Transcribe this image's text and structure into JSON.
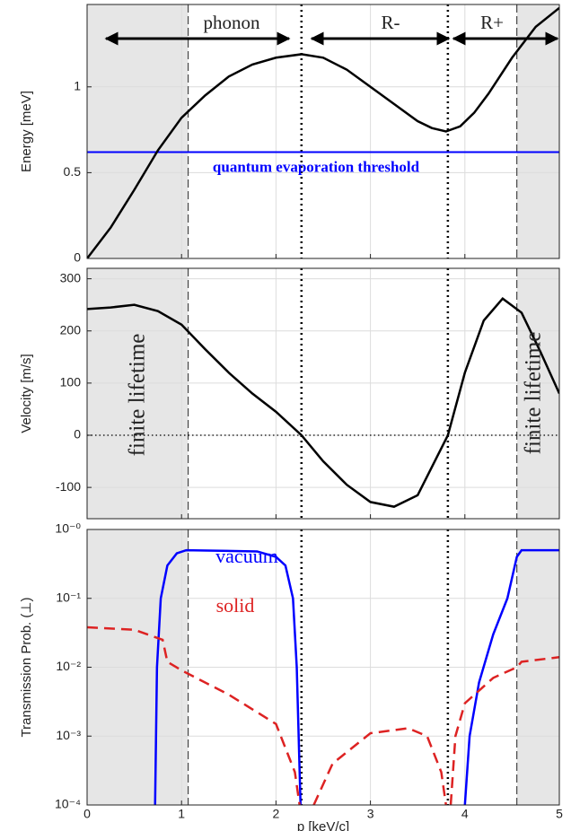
{
  "chart_data": [
    {
      "type": "line",
      "ylabel": "Energy [meV]",
      "xlim": [
        0,
        5
      ],
      "xticks": [
        0,
        1,
        2,
        3,
        4,
        5
      ],
      "ylim": [
        0,
        1.48
      ],
      "yticks": [
        0,
        0.5,
        1
      ],
      "grid": true,
      "dashed_vlines": [
        1.07,
        4.55
      ],
      "dotted_vlines": [
        2.27,
        3.82
      ],
      "hline": {
        "value": 0.62,
        "color": "#0000ff",
        "style": "solid",
        "label": "quantum evaporation threshold"
      },
      "annotations": [
        "phonon",
        "R-",
        "R+"
      ],
      "series": [
        {
          "color": "#000000",
          "x": [
            0,
            0.25,
            0.5,
            0.75,
            1,
            1.25,
            1.5,
            1.75,
            2,
            2.27,
            2.5,
            2.75,
            3,
            3.25,
            3.5,
            3.65,
            3.8,
            3.95,
            4.1,
            4.25,
            4.5,
            4.75,
            5
          ],
          "values": [
            0,
            0.18,
            0.4,
            0.63,
            0.82,
            0.95,
            1.06,
            1.13,
            1.17,
            1.19,
            1.17,
            1.1,
            1.0,
            0.9,
            0.8,
            0.76,
            0.74,
            0.77,
            0.85,
            0.96,
            1.17,
            1.35,
            1.46
          ]
        }
      ]
    },
    {
      "type": "line",
      "ylabel": "Velocity [m/s]",
      "xlim": [
        0,
        5
      ],
      "xticks": [
        0,
        1,
        2,
        3,
        4,
        5
      ],
      "ylim": [
        -160,
        320
      ],
      "yticks": [
        -100,
        0,
        100,
        200,
        300
      ],
      "grid": true,
      "dashed_vlines": [
        1.07,
        4.55
      ],
      "dotted_vlines": [
        2.27,
        3.82
      ],
      "hline": {
        "value": 0,
        "color": "#000000",
        "style": "dotted"
      },
      "annotations": [
        "finite lifetime",
        "finite lifetime"
      ],
      "series": [
        {
          "color": "#000000",
          "x": [
            0,
            0.25,
            0.5,
            0.75,
            1,
            1.25,
            1.5,
            1.75,
            2,
            2.27,
            2.5,
            2.75,
            3,
            3.25,
            3.5,
            3.82,
            4,
            4.2,
            4.4,
            4.6,
            4.8,
            5
          ],
          "values": [
            242,
            245,
            250,
            238,
            212,
            165,
            120,
            80,
            45,
            0,
            -50,
            -95,
            -128,
            -137,
            -115,
            0,
            120,
            220,
            262,
            235,
            160,
            80
          ]
        }
      ]
    },
    {
      "type": "line",
      "ylabel": "Transmission Prob. (⊥)",
      "xlabel": "p [keV/c]",
      "xticklabels": true,
      "xlim": [
        0,
        5
      ],
      "xticks": [
        0,
        1,
        2,
        3,
        4,
        5
      ],
      "ylim": [
        0.0001,
        1
      ],
      "log": true,
      "grid": true,
      "yticks": [
        {
          "value": 0.0001,
          "label": "10⁻⁴"
        },
        {
          "value": 0.001,
          "label": "10⁻³"
        },
        {
          "value": 0.01,
          "label": "10⁻²"
        },
        {
          "value": 0.1,
          "label": "10⁻¹"
        },
        {
          "value": 1,
          "label": "10⁻⁰"
        }
      ],
      "dashed_vlines": [
        1.07,
        4.55
      ],
      "dotted_vlines": [
        2.27,
        3.82
      ],
      "series": [
        {
          "name": "vacuum",
          "color": "#0000ff",
          "style": "solid",
          "x": [
            0.72,
            0.74,
            0.78,
            0.85,
            0.95,
            1.05,
            1.8,
            2.0,
            2.1,
            2.18,
            2.22,
            2.26,
            3.0,
            4.0,
            4.05,
            4.15,
            4.3,
            4.45,
            4.55,
            4.6,
            5
          ],
          "values": [
            0.0001,
            0.01,
            0.1,
            0.3,
            0.45,
            0.5,
            0.48,
            0.4,
            0.3,
            0.1,
            0.01,
            0.0001,
            null,
            0.0001,
            0.001,
            0.006,
            0.03,
            0.1,
            0.4,
            0.5,
            0.5
          ]
        },
        {
          "name": "solid",
          "color": "#dd2222",
          "style": "dashed",
          "x": [
            0,
            0.5,
            0.8,
            0.85,
            1.0,
            1.5,
            2.0,
            2.2,
            2.25,
            2.3,
            2.4,
            2.6,
            3.0,
            3.4,
            3.6,
            3.75,
            3.8,
            3.82,
            3.85,
            3.9,
            4.0,
            4.3,
            4.55,
            4.6,
            5
          ],
          "values": [
            0.038,
            0.035,
            0.025,
            0.012,
            0.009,
            0.004,
            0.0015,
            0.0003,
            0.0001,
            null,
            0.0001,
            0.0004,
            0.0011,
            0.0013,
            0.001,
            0.0003,
            0.0001,
            null,
            0.0001,
            0.001,
            0.003,
            0.007,
            0.01,
            0.012,
            0.014
          ]
        }
      ]
    }
  ]
}
